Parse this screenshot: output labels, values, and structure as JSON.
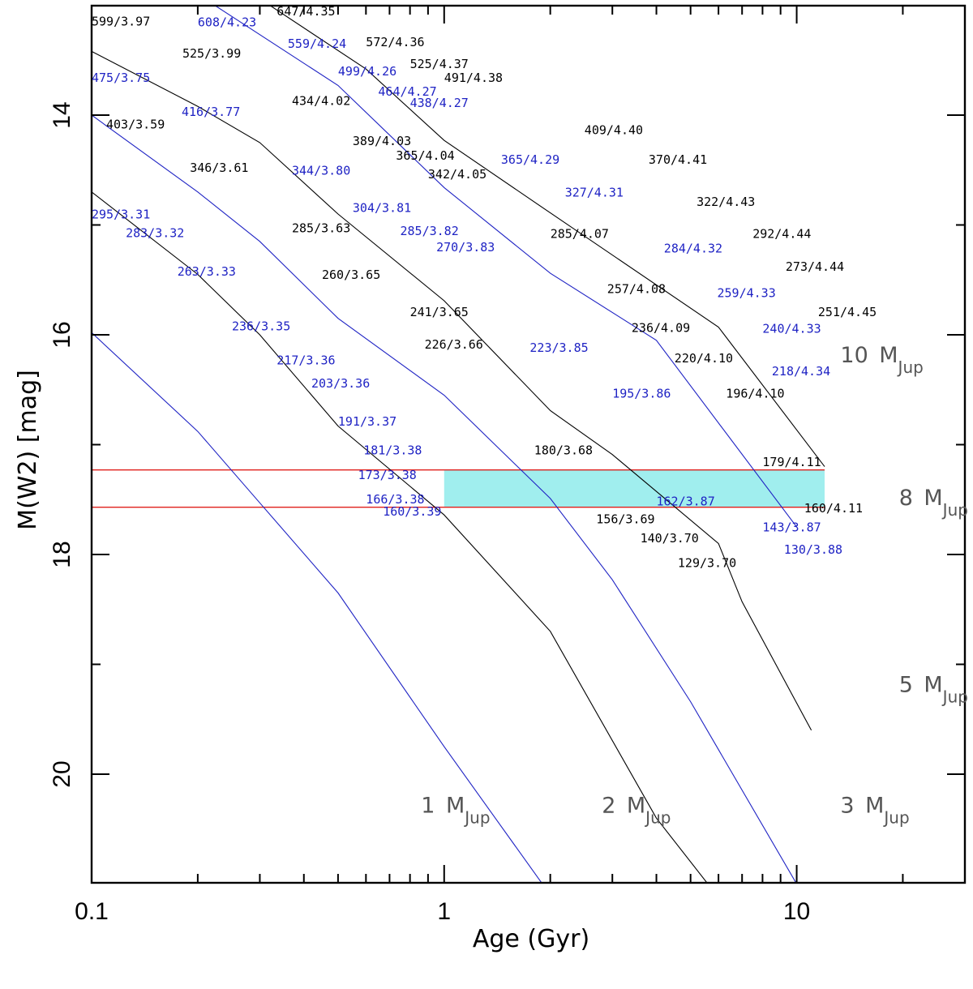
{
  "chart_data": {
    "type": "line",
    "title": "",
    "xlabel": "Age (Gyr)",
    "ylabel": "M(W2) [mag]",
    "x_scale": "log",
    "xlim": [
      0.1,
      30
    ],
    "ylim": [
      21.0,
      13.0
    ],
    "x_ticks": [
      {
        "value": 0.1,
        "label": "0.1"
      },
      {
        "value": 1,
        "label": "1"
      },
      {
        "value": 10,
        "label": "10"
      }
    ],
    "y_ticks": [
      {
        "value": 14,
        "label": "14"
      },
      {
        "value": 16,
        "label": "16"
      },
      {
        "value": 18,
        "label": "18"
      },
      {
        "value": 20,
        "label": "20"
      }
    ],
    "colors": {
      "black": "#000000",
      "blue": "#1f23c4",
      "band_fill": "#a0eeee",
      "band_edge": "#e0201c",
      "frame": "#000000"
    },
    "band": {
      "y_bright": 17.23,
      "y_faint": 17.57,
      "x_fill_start": 1.0,
      "x_end": 12
    },
    "series": [
      {
        "name": "curve-1",
        "color": "blue",
        "points": [
          [
            0.1,
            15.98
          ],
          [
            0.2,
            16.88
          ],
          [
            0.3,
            17.53
          ],
          [
            0.5,
            18.35
          ],
          [
            1.0,
            19.75
          ],
          [
            1.9,
            21.0
          ]
        ]
      },
      {
        "name": "curve-2",
        "color": "black",
        "points": [
          [
            0.1,
            14.7
          ],
          [
            0.2,
            15.45
          ],
          [
            0.3,
            16.0
          ],
          [
            0.5,
            16.83
          ],
          [
            1.0,
            17.64
          ],
          [
            2.0,
            18.7
          ],
          [
            4.0,
            20.4
          ],
          [
            5.6,
            21.0
          ]
        ]
      },
      {
        "name": "curve-3",
        "color": "blue",
        "points": [
          [
            0.1,
            14.0
          ],
          [
            0.2,
            14.7
          ],
          [
            0.3,
            15.15
          ],
          [
            0.5,
            15.85
          ],
          [
            1.0,
            16.55
          ],
          [
            2.0,
            17.49
          ],
          [
            3.0,
            18.23
          ],
          [
            5.0,
            19.34
          ],
          [
            10.0,
            21.0
          ]
        ]
      },
      {
        "name": "curve-4",
        "color": "black",
        "points": [
          [
            0.1,
            13.42
          ],
          [
            0.2,
            13.92
          ],
          [
            0.3,
            14.25
          ],
          [
            0.5,
            14.9
          ],
          [
            1.0,
            15.69
          ],
          [
            2.0,
            16.69
          ],
          [
            3.0,
            17.09
          ],
          [
            6.0,
            17.9
          ],
          [
            7.0,
            18.43
          ],
          [
            11.0,
            19.6
          ]
        ]
      },
      {
        "name": "curve-5",
        "color": "blue",
        "points": [
          [
            0.2,
            12.9
          ],
          [
            0.5,
            13.73
          ],
          [
            1.0,
            14.66
          ],
          [
            2.0,
            15.44
          ],
          [
            4.0,
            16.05
          ],
          [
            10.0,
            17.75
          ]
        ]
      },
      {
        "name": "curve-6",
        "color": "black",
        "points": [
          [
            0.32,
            13.0
          ],
          [
            0.6,
            13.58
          ],
          [
            1.0,
            14.23
          ],
          [
            2.0,
            14.89
          ],
          [
            6.0,
            15.93
          ],
          [
            12.0,
            17.2
          ]
        ]
      }
    ],
    "point_labels": [
      {
        "text": "647/4.35",
        "x": 0.335,
        "y": 13.09,
        "color": "black"
      },
      {
        "text": "608/4.23",
        "x": 0.2,
        "y": 13.29,
        "color": "blue"
      },
      {
        "text": "599/3.97",
        "x": 0.1,
        "y": 13.27,
        "color": "black"
      },
      {
        "text": "572/4.36",
        "x": 0.6,
        "y": 13.65,
        "color": "black"
      },
      {
        "text": "559/4.24",
        "x": 0.36,
        "y": 13.68,
        "color": "blue"
      },
      {
        "text": "525/3.99",
        "x": 0.181,
        "y": 13.86,
        "color": "black"
      },
      {
        "text": "525/4.37",
        "x": 0.8,
        "y": 14.05,
        "color": "black"
      },
      {
        "text": "499/4.26",
        "x": 0.5,
        "y": 14.18,
        "color": "blue"
      },
      {
        "text": "491/4.38",
        "x": 1.0,
        "y": 14.3,
        "color": "black"
      },
      {
        "text": "475/3.75",
        "x": 0.1,
        "y": 14.3,
        "color": "blue"
      },
      {
        "text": "464/4.27",
        "x": 0.65,
        "y": 14.55,
        "color": "blue"
      },
      {
        "text": "438/4.27",
        "x": 0.8,
        "y": 14.76,
        "color": "blue"
      },
      {
        "text": "434/4.02",
        "x": 0.37,
        "y": 14.72,
        "color": "black"
      },
      {
        "text": "416/3.77",
        "x": 0.18,
        "y": 14.92,
        "color": "blue"
      },
      {
        "text": "403/3.59",
        "x": 0.11,
        "y": 15.15,
        "color": "black"
      },
      {
        "text": "409/4.40",
        "x": 2.5,
        "y": 15.25,
        "color": "black"
      },
      {
        "text": "389/4.03",
        "x": 0.55,
        "y": 15.45,
        "color": "black"
      },
      {
        "text": "365/4.04",
        "x": 0.73,
        "y": 15.72,
        "color": "black"
      },
      {
        "text": "365/4.29",
        "x": 1.45,
        "y": 15.79,
        "color": "blue"
      },
      {
        "text": "370/4.41",
        "x": 3.8,
        "y": 15.79,
        "color": "black"
      },
      {
        "text": "346/3.61",
        "x": 0.19,
        "y": 15.94,
        "color": "black"
      },
      {
        "text": "344/3.80",
        "x": 0.37,
        "y": 15.99,
        "color": "blue"
      },
      {
        "text": "342/4.05",
        "x": 0.9,
        "y": 16.06,
        "color": "black"
      },
      {
        "text": "327/4.31",
        "x": 2.2,
        "y": 16.39,
        "color": "blue"
      },
      {
        "text": "322/4.43",
        "x": 5.2,
        "y": 16.56,
        "color": "black"
      },
      {
        "text": "304/3.81",
        "x": 0.55,
        "y": 16.67,
        "color": "blue"
      },
      {
        "text": "295/3.31",
        "x": 0.1,
        "y": 16.79,
        "color": "blue"
      },
      {
        "text": "285/3.63",
        "x": 0.37,
        "y": 17.04,
        "color": "black"
      },
      {
        "text": "285/3.82",
        "x": 0.75,
        "y": 17.09,
        "color": "blue"
      },
      {
        "text": "283/3.32",
        "x": 0.125,
        "y": 17.13,
        "color": "blue"
      },
      {
        "text": "285/4.07",
        "x": 2.0,
        "y": 17.14,
        "color": "black"
      },
      {
        "text": "292/4.44",
        "x": 7.5,
        "y": 17.14,
        "color": "black"
      },
      {
        "text": "270/3.83",
        "x": 0.95,
        "y": 17.39,
        "color": "blue"
      },
      {
        "text": "284/4.32",
        "x": 4.2,
        "y": 17.41,
        "color": "blue"
      },
      {
        "text": "273/4.44",
        "x": 9.3,
        "y": 17.74,
        "color": "black"
      },
      {
        "text": "263/3.33",
        "x": 0.175,
        "y": 17.83,
        "color": "blue"
      },
      {
        "text": "260/3.65",
        "x": 0.45,
        "y": 17.89,
        "color": "black"
      },
      {
        "text": "257/4.08",
        "x": 2.9,
        "y": 18.15,
        "color": "black"
      },
      {
        "text": "259/4.33",
        "x": 5.95,
        "y": 18.22,
        "color": "blue"
      },
      {
        "text": "251/4.45",
        "x": 11.5,
        "y": 18.57,
        "color": "black"
      },
      {
        "text": "241/3.65",
        "x": 0.8,
        "y": 18.57,
        "color": "black"
      },
      {
        "text": "236/3.35",
        "x": 0.25,
        "y": 18.83,
        "color": "blue"
      },
      {
        "text": "236/4.09",
        "x": 3.4,
        "y": 18.86,
        "color": "black"
      },
      {
        "text": "240/4.33",
        "x": 8.0,
        "y": 18.87,
        "color": "blue"
      },
      {
        "text": "226/3.66",
        "x": 0.88,
        "y": 19.16,
        "color": "black"
      },
      {
        "text": "223/3.85",
        "x": 1.75,
        "y": 19.22,
        "color": "blue"
      },
      {
        "text": "220/4.10",
        "x": 4.5,
        "y": 19.41,
        "color": "black"
      },
      {
        "text": "217/3.36",
        "x": 0.335,
        "y": 19.45,
        "color": "blue"
      },
      {
        "text": "218/4.34",
        "x": 8.5,
        "y": 19.65,
        "color": "blue"
      },
      {
        "text": "203/3.36",
        "x": 0.42,
        "y": 19.87,
        "color": "blue"
      },
      {
        "text": "196/4.10",
        "x": 6.3,
        "y": 20.05,
        "color": "black"
      },
      {
        "text": "195/3.86",
        "x": 3.0,
        "y": 20.05,
        "color": "blue"
      },
      {
        "text": "191/3.37",
        "x": 0.5,
        "y": 20.56,
        "color": "blue"
      },
      {
        "text": "180/3.68",
        "x": 1.8,
        "y": 21.09,
        "color": "black"
      },
      {
        "text": "179/4.11",
        "x": 8.0,
        "y": 21.3,
        "color": "black"
      },
      {
        "text": "181/3.38",
        "x": 0.59,
        "y": 21.09,
        "color": "blue"
      },
      {
        "text": "173/3.38",
        "x": 0.57,
        "y": 21.54,
        "color": "blue"
      },
      {
        "text": "166/3.38",
        "x": 0.6,
        "y": 21.98,
        "color": "blue"
      },
      {
        "text": "162/3.87",
        "x": 4.0,
        "y": 22.02,
        "color": "blue"
      },
      {
        "text": "160/4.11",
        "x": 10.5,
        "y": 22.14,
        "color": "black"
      },
      {
        "text": "160/3.39",
        "x": 0.67,
        "y": 22.2,
        "color": "blue"
      },
      {
        "text": "156/3.69",
        "x": 2.7,
        "y": 22.34,
        "color": "black"
      },
      {
        "text": "143/3.87",
        "x": 8.0,
        "y": 22.49,
        "color": "blue"
      },
      {
        "text": "140/3.70",
        "x": 3.6,
        "y": 22.69,
        "color": "black"
      },
      {
        "text": "130/3.88",
        "x": 9.2,
        "y": 22.9,
        "color": "blue"
      },
      {
        "text": "129/3.70",
        "x": 4.6,
        "y": 23.14,
        "color": "black"
      }
    ],
    "mass_labels": [
      {
        "value": "10",
        "unit": "M",
        "sub": "Jup",
        "x": 13.3,
        "y": 16.25
      },
      {
        "value": "8",
        "unit": "M",
        "sub": "Jup",
        "x": 19.5,
        "y": 17.55
      },
      {
        "value": "5",
        "unit": "M",
        "sub": "Jup",
        "x": 19.5,
        "y": 19.25
      },
      {
        "value": "1",
        "unit": "M",
        "sub": "Jup",
        "x": 0.86,
        "y": 20.35
      },
      {
        "value": "2",
        "unit": "M",
        "sub": "Jup",
        "x": 2.8,
        "y": 20.35
      },
      {
        "value": "3",
        "unit": "M",
        "sub": "Jup",
        "x": 13.3,
        "y": 20.35
      }
    ]
  }
}
